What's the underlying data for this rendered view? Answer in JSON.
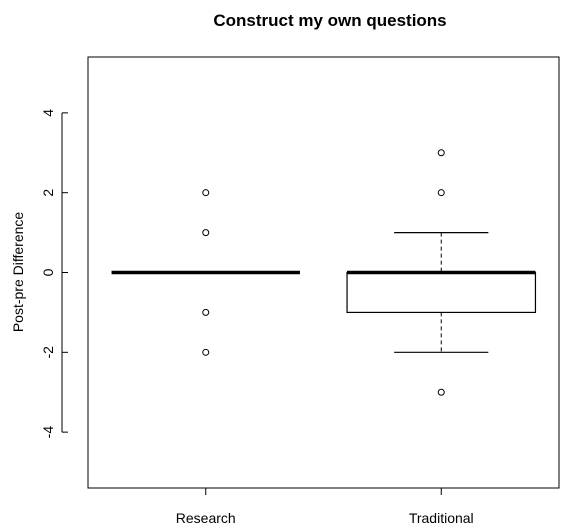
{
  "chart_data": {
    "type": "boxplot",
    "title": "Construct my own questions",
    "xlabel": "",
    "ylabel": "Post-pre Difference",
    "ylim": [
      -5.4,
      5.4
    ],
    "yticks": [
      -4,
      -2,
      0,
      2,
      4
    ],
    "yticklabels": [
      "-4",
      "-2",
      "0",
      "2",
      "4"
    ],
    "categories": [
      "Research",
      "Traditional"
    ],
    "boxes": [
      {
        "name": "Research",
        "whisker_low": 0,
        "q1": 0,
        "median": 0,
        "q3": 0,
        "whisker_high": 0,
        "outliers": [
          2,
          1,
          -1,
          -2
        ]
      },
      {
        "name": "Traditional",
        "whisker_low": -2,
        "q1": -1,
        "median": 0,
        "q3": 0,
        "whisker_high": 1,
        "outliers": [
          3,
          2,
          -3
        ]
      }
    ],
    "grid": false,
    "legend": "none"
  }
}
